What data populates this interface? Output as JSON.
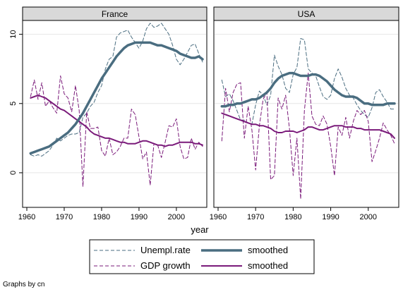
{
  "chart_data": {
    "type": "line",
    "xlabel": "year",
    "note": "Graphs by cn",
    "xlim": [
      1960,
      2007
    ],
    "ylim": [
      -2.5,
      11
    ],
    "xticks": [
      1960,
      1970,
      1980,
      1990,
      2000
    ],
    "yticks": [
      0,
      5,
      10
    ],
    "grid": "horizontal at y ticks",
    "colors": {
      "unemployment": "#4a6d80",
      "gdp": "#7a1a7a",
      "strip": "#d9d9d9",
      "frame": "#000000",
      "grid": "#e6e6e6"
    },
    "legend": {
      "placement": "bottom-center",
      "columns": 2,
      "entries": [
        {
          "label": "Unempl.rate",
          "style": "dashed",
          "series": "unemployment"
        },
        {
          "label": "smoothed",
          "style": "thick-solid",
          "series": "unemployment"
        },
        {
          "label": "GDP growth",
          "style": "dashed",
          "series": "gdp"
        },
        {
          "label": "smoothed",
          "style": "solid",
          "series": "gdp"
        }
      ]
    },
    "panels": [
      {
        "label": "France",
        "x": [
          1961,
          1962,
          1963,
          1964,
          1965,
          1966,
          1967,
          1968,
          1969,
          1970,
          1971,
          1972,
          1973,
          1974,
          1975,
          1976,
          1977,
          1978,
          1979,
          1980,
          1981,
          1982,
          1983,
          1984,
          1985,
          1986,
          1987,
          1988,
          1989,
          1990,
          1991,
          1992,
          1993,
          1994,
          1995,
          1996,
          1997,
          1998,
          1999,
          2000,
          2001,
          2002,
          2003,
          2004,
          2005,
          2006,
          2007
        ],
        "unemployment": [
          1.3,
          1.2,
          1.3,
          1.2,
          1.4,
          1.6,
          2.0,
          2.5,
          2.3,
          2.5,
          2.7,
          2.8,
          2.8,
          2.9,
          4.0,
          4.3,
          4.8,
          5.1,
          5.8,
          6.3,
          7.5,
          8.2,
          8.4,
          9.8,
          10.1,
          10.2,
          10.3,
          9.8,
          9.4,
          9.0,
          9.5,
          10.4,
          10.8,
          10.5,
          10.6,
          10.8,
          10.4,
          10.0,
          9.2,
          8.2,
          7.8,
          8.2,
          8.7,
          9.2,
          9.3,
          8.6,
          8.0
        ],
        "unemployment_smoothed": [
          1.4,
          1.5,
          1.6,
          1.7,
          1.8,
          1.9,
          2.1,
          2.3,
          2.5,
          2.7,
          2.9,
          3.2,
          3.5,
          3.9,
          4.3,
          4.8,
          5.3,
          5.8,
          6.3,
          6.8,
          7.2,
          7.6,
          8.0,
          8.4,
          8.7,
          9.0,
          9.2,
          9.3,
          9.4,
          9.4,
          9.4,
          9.4,
          9.4,
          9.3,
          9.2,
          9.2,
          9.1,
          9.0,
          8.9,
          8.8,
          8.6,
          8.5,
          8.4,
          8.3,
          8.3,
          8.4,
          8.2
        ],
        "gdp": [
          5.5,
          6.7,
          5.3,
          6.5,
          4.8,
          5.2,
          4.7,
          4.3,
          7.0,
          5.7,
          5.4,
          4.4,
          6.3,
          4.5,
          -1.0,
          4.4,
          3.2,
          3.2,
          3.3,
          1.6,
          1.2,
          2.5,
          1.3,
          1.5,
          1.9,
          2.5,
          2.5,
          4.6,
          4.2,
          2.6,
          1.0,
          1.5,
          -0.9,
          2.1,
          2.0,
          1.1,
          2.2,
          3.4,
          3.3,
          3.9,
          1.9,
          1.0,
          1.1,
          2.5,
          1.7,
          2.2,
          1.9
        ],
        "gdp_smoothed": [
          5.4,
          5.5,
          5.6,
          5.5,
          5.4,
          5.2,
          5.0,
          4.8,
          4.6,
          4.5,
          4.3,
          4.1,
          3.9,
          3.7,
          3.5,
          3.3,
          3.0,
          2.8,
          2.7,
          2.6,
          2.5,
          2.5,
          2.4,
          2.3,
          2.2,
          2.2,
          2.1,
          2.1,
          2.1,
          2.2,
          2.3,
          2.3,
          2.2,
          2.1,
          2.0,
          2.0,
          1.9,
          2.0,
          2.0,
          2.1,
          2.2,
          2.2,
          2.2,
          2.2,
          2.1,
          2.1,
          2.0
        ]
      },
      {
        "label": "USA",
        "x": [
          1961,
          1962,
          1963,
          1964,
          1965,
          1966,
          1967,
          1968,
          1969,
          1970,
          1971,
          1972,
          1973,
          1974,
          1975,
          1976,
          1977,
          1978,
          1979,
          1980,
          1981,
          1982,
          1983,
          1984,
          1985,
          1986,
          1987,
          1988,
          1989,
          1990,
          1991,
          1992,
          1993,
          1994,
          1995,
          1996,
          1997,
          1998,
          1999,
          2000,
          2001,
          2002,
          2003,
          2004,
          2005,
          2006,
          2007
        ],
        "unemployment": [
          6.7,
          5.5,
          5.7,
          5.2,
          4.5,
          3.8,
          3.8,
          3.6,
          3.5,
          4.9,
          5.9,
          5.6,
          4.9,
          5.6,
          8.5,
          7.7,
          7.1,
          6.1,
          5.8,
          7.1,
          7.6,
          9.7,
          9.6,
          7.5,
          7.2,
          7.0,
          6.2,
          5.5,
          5.3,
          5.6,
          6.8,
          7.5,
          6.9,
          6.1,
          5.6,
          5.4,
          4.9,
          4.5,
          4.2,
          4.0,
          4.7,
          5.8,
          6.0,
          5.5,
          5.1,
          4.6,
          4.6
        ],
        "unemployment_smoothed": [
          4.8,
          4.8,
          4.9,
          4.9,
          5.0,
          5.0,
          5.1,
          5.2,
          5.3,
          5.3,
          5.4,
          5.6,
          5.8,
          6.1,
          6.5,
          6.8,
          7.0,
          7.1,
          7.2,
          7.2,
          7.1,
          7.0,
          7.0,
          7.0,
          7.1,
          7.1,
          7.0,
          6.8,
          6.6,
          6.3,
          6.0,
          5.8,
          5.6,
          5.5,
          5.5,
          5.5,
          5.4,
          5.2,
          5.0,
          5.0,
          4.9,
          4.9,
          4.9,
          4.9,
          5.0,
          5.0,
          5.0
        ],
        "gdp": [
          2.3,
          6.1,
          4.4,
          5.8,
          6.4,
          6.5,
          2.5,
          4.8,
          3.1,
          0.2,
          3.4,
          5.3,
          5.8,
          -0.5,
          -0.2,
          5.4,
          4.6,
          5.6,
          3.2,
          -0.2,
          2.5,
          -1.9,
          4.5,
          7.2,
          4.1,
          3.5,
          3.4,
          4.1,
          3.5,
          1.9,
          -0.2,
          3.3,
          2.7,
          4.0,
          2.5,
          3.7,
          4.5,
          4.2,
          4.5,
          3.7,
          0.8,
          1.6,
          2.5,
          3.6,
          3.1,
          2.7,
          2.1
        ],
        "gdp_smoothed": [
          4.3,
          4.2,
          4.1,
          4.0,
          3.9,
          3.8,
          3.7,
          3.6,
          3.5,
          3.5,
          3.4,
          3.4,
          3.3,
          3.2,
          3.0,
          2.9,
          2.9,
          3.0,
          3.0,
          3.0,
          2.9,
          3.0,
          3.1,
          3.3,
          3.3,
          3.2,
          3.1,
          3.1,
          3.2,
          3.3,
          3.4,
          3.4,
          3.4,
          3.3,
          3.3,
          3.3,
          3.2,
          3.2,
          3.1,
          3.1,
          3.1,
          3.1,
          3.1,
          3.0,
          2.9,
          2.8,
          2.5
        ]
      }
    ]
  }
}
